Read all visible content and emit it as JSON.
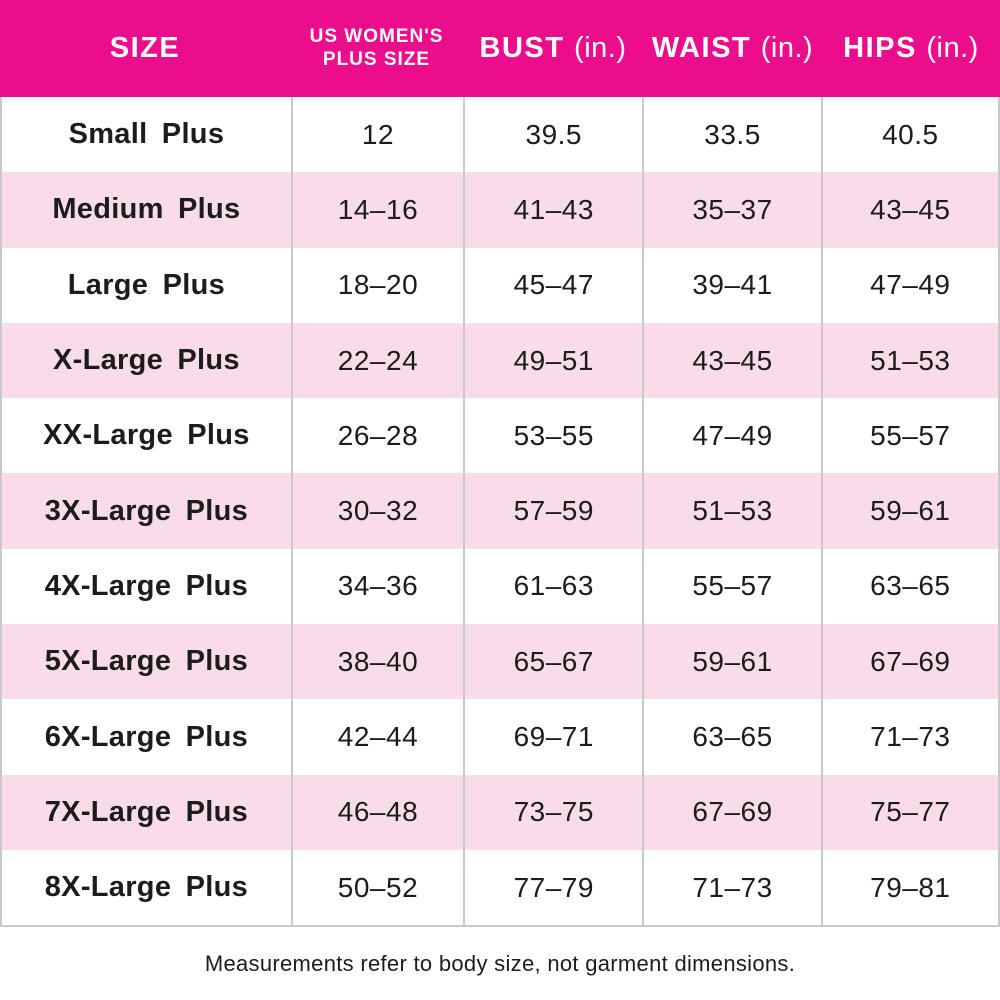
{
  "chart_data": {
    "type": "table",
    "columns": [
      {
        "label": "SIZE",
        "unit": ""
      },
      {
        "label": "US WOMEN'S\nPLUS SIZE",
        "unit": ""
      },
      {
        "label": "BUST",
        "unit": "(in.)"
      },
      {
        "label": "WAIST",
        "unit": "(in.)"
      },
      {
        "label": "HIPS",
        "unit": "(in.)"
      }
    ],
    "rows": [
      {
        "size": "Small Plus",
        "plus_size": "12",
        "bust": "39.5",
        "waist": "33.5",
        "hips": "40.5"
      },
      {
        "size": "Medium Plus",
        "plus_size": "14–16",
        "bust": "41–43",
        "waist": "35–37",
        "hips": "43–45"
      },
      {
        "size": "Large Plus",
        "plus_size": "18–20",
        "bust": "45–47",
        "waist": "39–41",
        "hips": "47–49"
      },
      {
        "size": "X-Large Plus",
        "plus_size": "22–24",
        "bust": "49–51",
        "waist": "43–45",
        "hips": "51–53"
      },
      {
        "size": "XX-Large Plus",
        "plus_size": "26–28",
        "bust": "53–55",
        "waist": "47–49",
        "hips": "55–57"
      },
      {
        "size": "3X-Large Plus",
        "plus_size": "30–32",
        "bust": "57–59",
        "waist": "51–53",
        "hips": "59–61"
      },
      {
        "size": "4X-Large Plus",
        "plus_size": "34–36",
        "bust": "61–63",
        "waist": "55–57",
        "hips": "63–65"
      },
      {
        "size": "5X-Large Plus",
        "plus_size": "38–40",
        "bust": "65–67",
        "waist": "59–61",
        "hips": "67–69"
      },
      {
        "size": "6X-Large Plus",
        "plus_size": "42–44",
        "bust": "69–71",
        "waist": "63–65",
        "hips": "71–73"
      },
      {
        "size": "7X-Large Plus",
        "plus_size": "46–48",
        "bust": "73–75",
        "waist": "67–69",
        "hips": "75–77"
      },
      {
        "size": "8X-Large Plus",
        "plus_size": "50–52",
        "bust": "77–79",
        "waist": "71–73",
        "hips": "79–81"
      }
    ],
    "footnote": "Measurements refer to body size, not garment dimensions."
  },
  "colors": {
    "header_bg": "#EC0D8C",
    "row_alt_bg": "#F9DCE9",
    "grid_line": "#C9C9C9",
    "text": "#1C1C1C",
    "header_text": "#FFFFFF"
  }
}
